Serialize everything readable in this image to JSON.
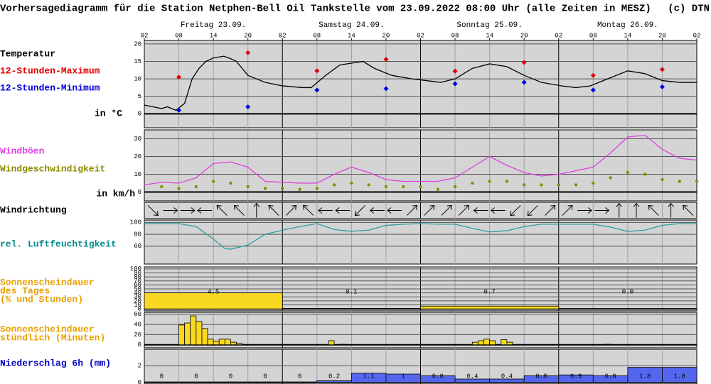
{
  "title": "Vorhersagediagramm für die Station Netphen-Bell Oil Tankstelle vom 23.09.2022 08:00 Uhr (alle Zeiten in MESZ)",
  "copyright": "(c) DTN",
  "chart_data": [
    {
      "type": "line",
      "title": "Temperatur",
      "title_color": "#000000",
      "unit_label": "in °C",
      "color": "#000000",
      "day_labels": [
        "Freitag 23.09.",
        "Samstag 24.09.",
        "Sonntag 25.09.",
        "Montag 26.09."
      ],
      "xlim": [
        0,
        96
      ],
      "xticks": [
        {
          "value": 0,
          "label": "02"
        },
        {
          "value": 6,
          "label": "08"
        },
        {
          "value": 12,
          "label": "14"
        },
        {
          "value": 18,
          "label": "20"
        },
        {
          "value": 24,
          "label": "02"
        },
        {
          "value": 30,
          "label": "08"
        },
        {
          "value": 36,
          "label": "14"
        },
        {
          "value": 42,
          "label": "20"
        },
        {
          "value": 48,
          "label": "02"
        },
        {
          "value": 54,
          "label": "08"
        },
        {
          "value": 60,
          "label": "14"
        },
        {
          "value": 66,
          "label": "20"
        },
        {
          "value": 72,
          "label": "02"
        },
        {
          "value": 78,
          "label": "08"
        },
        {
          "value": 84,
          "label": "14"
        },
        {
          "value": 90,
          "label": "20"
        },
        {
          "value": 96,
          "label": "02"
        }
      ],
      "ylim": [
        -4,
        21
      ],
      "yticks": [
        0,
        5,
        10,
        15,
        20
      ],
      "x": [
        0,
        1.5,
        3,
        4,
        5.5,
        7,
        8.3,
        9.5,
        10.7,
        12,
        13.8,
        15,
        16,
        18,
        21,
        24,
        27.5,
        29,
        31.5,
        34,
        38,
        40,
        43,
        46.5,
        49,
        51.5,
        54,
        57,
        60,
        63,
        66,
        69,
        72.5,
        75,
        77.5,
        80.5,
        84,
        87,
        90,
        93,
        96
      ],
      "values": [
        2.5,
        2,
        1.5,
        2,
        1,
        3,
        10,
        13,
        15,
        16,
        16.5,
        15.8,
        15,
        11,
        9,
        8,
        7.5,
        7.5,
        11,
        14,
        15,
        13,
        11,
        10,
        9.5,
        9,
        10,
        13,
        14.3,
        13.5,
        11,
        9,
        8,
        7.5,
        8,
        10,
        12.3,
        11.5,
        9.5,
        9,
        9
      ],
      "series": [
        {
          "name": "12-Stunden-Maximum",
          "color": "#e00000",
          "marker": "diamond",
          "x": [
            6,
            18,
            30,
            42,
            54,
            66,
            78,
            90
          ],
          "values": [
            10.5,
            17.5,
            12.3,
            15.6,
            12.2,
            14.7,
            11,
            12.7
          ]
        },
        {
          "name": "12-Stunden-Minimum",
          "color": "#0000e0",
          "marker": "diamond",
          "x": [
            6,
            18,
            30,
            42,
            54,
            66,
            78,
            90
          ],
          "values": [
            1,
            2,
            6.8,
            7.2,
            8.6,
            9,
            6.8,
            7.7
          ]
        }
      ]
    },
    {
      "type": "line",
      "unit_label": "in km/h",
      "ylim": [
        -5,
        35
      ],
      "yticks": [
        0,
        10,
        20,
        30
      ],
      "series": [
        {
          "name": "Windböen",
          "color": "#e040e0",
          "marker": "line",
          "x": [
            0,
            3,
            6,
            9,
            12,
            15,
            18,
            21,
            24,
            27,
            30,
            33,
            36,
            39,
            42,
            45,
            48,
            51,
            54,
            57,
            60,
            63,
            66,
            69,
            72,
            75,
            78,
            81,
            84,
            87,
            90,
            93,
            96
          ],
          "values": [
            4,
            5.5,
            5,
            8,
            16,
            17,
            14,
            6,
            5.5,
            5,
            5,
            10,
            14,
            11,
            7,
            6,
            6,
            6,
            8,
            14,
            20,
            15,
            11,
            9,
            10,
            12,
            14,
            22,
            31,
            32,
            24,
            19,
            18
          ]
        },
        {
          "name": "Windgeschwindigkeit",
          "color": "#8b8b00",
          "marker": "dots",
          "x": [
            3,
            6,
            9,
            12,
            15,
            18,
            21,
            24,
            27,
            30,
            33,
            36,
            39,
            42,
            45,
            48,
            51,
            54,
            57,
            60,
            63,
            66,
            69,
            72,
            75,
            78,
            81,
            84,
            87,
            90,
            93,
            96
          ],
          "values": [
            3,
            2,
            3,
            6,
            5,
            3,
            2,
            2,
            1.5,
            2,
            4,
            5,
            4,
            3,
            3,
            3,
            1.5,
            3,
            5,
            6,
            6,
            4,
            4,
            4,
            4,
            5,
            8,
            11,
            10,
            7,
            6,
            6
          ]
        }
      ]
    },
    {
      "type": "arrows",
      "title": "Windrichtung",
      "title_color": "#000000",
      "color": "#000000",
      "x": [
        1.5,
        4.5,
        7.5,
        10.5,
        13.5,
        16.5,
        19.5,
        22.5,
        25.5,
        28.5,
        31.5,
        34.5,
        37.5,
        40.5,
        43.5,
        46.5,
        49.5,
        52.5,
        55.5,
        58.5,
        61.5,
        64.5,
        67.5,
        70.5,
        73.5,
        76.5,
        79.5,
        82.5,
        85.5,
        88.5,
        91.5,
        94.5
      ],
      "values": [
        135,
        90,
        90,
        270,
        315,
        315,
        0,
        315,
        45,
        315,
        270,
        270,
        225,
        270,
        270,
        45,
        45,
        45,
        45,
        270,
        270,
        225,
        225,
        45,
        45,
        90,
        90,
        0,
        0,
        315,
        0,
        315
      ]
    },
    {
      "type": "line",
      "title": "rel. Luftfeuchtigkeit",
      "title_color": "#008b8b",
      "color": "#2f9c9c",
      "ylim": [
        30,
        104
      ],
      "yticks": [
        60,
        80,
        100
      ],
      "x": [
        0,
        3,
        6,
        9,
        12,
        14,
        15,
        18,
        21,
        24,
        27,
        30,
        33,
        36,
        39,
        42,
        45,
        48,
        51,
        54,
        57,
        60,
        63,
        66,
        69,
        72,
        75,
        78,
        81,
        84,
        87,
        90,
        93,
        96
      ],
      "values": [
        98,
        98,
        98,
        93,
        72,
        56,
        55,
        62,
        80,
        87,
        93,
        98,
        88,
        85,
        87,
        95,
        97,
        98,
        97,
        97,
        90,
        84,
        86,
        93,
        97,
        97,
        97,
        97,
        92,
        85,
        87,
        95,
        98,
        98
      ]
    },
    {
      "type": "histogram",
      "title_lines": [
        "Sonnenscheindauer",
        "des Tages",
        "(% und Stunden)"
      ],
      "title_color": "#e8a000",
      "color": "#f8d820",
      "ylim": [
        -5,
        105
      ],
      "yticks": [
        0,
        10,
        20,
        30,
        40,
        50,
        60,
        70,
        80,
        90,
        100
      ],
      "bins": [
        0,
        24,
        48,
        72,
        96
      ],
      "values": [
        40,
        1,
        7,
        0
      ],
      "hours": [
        "4.5",
        "0.1",
        "0.7",
        "0.0"
      ]
    },
    {
      "type": "histogram",
      "title_lines": [
        "Sonnenscheindauer",
        "stündlich (Minuten)"
      ],
      "title_color": "#e8a000",
      "color": "#f8d820",
      "ylim": [
        -6,
        64
      ],
      "yticks": [
        0,
        20,
        40,
        60
      ],
      "bins": [
        0,
        1,
        2,
        3,
        4,
        5,
        6,
        7,
        8,
        9,
        10,
        11,
        12,
        13,
        14,
        15,
        16,
        17,
        18,
        19,
        20,
        21,
        22,
        23,
        24,
        25,
        26,
        27,
        28,
        29,
        30,
        31,
        32,
        33,
        34,
        35,
        36,
        37,
        38,
        39,
        40,
        41,
        42,
        43,
        44,
        45,
        46,
        47,
        48,
        49,
        50,
        51,
        52,
        53,
        54,
        55,
        56,
        57,
        58,
        59,
        60,
        61,
        62,
        63,
        64,
        65,
        66,
        67,
        68,
        69,
        70,
        71,
        72,
        73,
        74,
        75,
        76,
        77,
        78,
        79,
        80,
        81,
        82,
        83,
        84,
        85,
        86,
        87,
        88,
        89,
        90,
        91,
        92,
        93,
        94,
        95,
        96
      ],
      "values": [
        0,
        0,
        0,
        0,
        0,
        0,
        39,
        43,
        57,
        46,
        32,
        11,
        7,
        11,
        11,
        5,
        3,
        0,
        0,
        0,
        0,
        0,
        0,
        0,
        0,
        0,
        0,
        0,
        0,
        0,
        0,
        0,
        8,
        0,
        1,
        0,
        0,
        0,
        0,
        0,
        0,
        0,
        0,
        0,
        0,
        0,
        0,
        0,
        0,
        0,
        0,
        0,
        0,
        0,
        0,
        0,
        0,
        5,
        8,
        11,
        8,
        0,
        10,
        5,
        0,
        0,
        0,
        0,
        0,
        0,
        0,
        0,
        0,
        0,
        0,
        0,
        0,
        0,
        0,
        0,
        1,
        0,
        0,
        0,
        0,
        0,
        0,
        0,
        0,
        0,
        0,
        0,
        0,
        0,
        0,
        0
      ]
    },
    {
      "type": "histogram",
      "title_lines": [
        "Niederschlag 6h (mm)"
      ],
      "title_color": "#0000c0",
      "color": "#5566ee",
      "show_values": true,
      "ylim": [
        -0.2,
        4
      ],
      "yticks": [
        0,
        2
      ],
      "bins": [
        0,
        6,
        12,
        18,
        24,
        30,
        36,
        42,
        48,
        54,
        60,
        66,
        72,
        78,
        84,
        90,
        96
      ],
      "values": [
        0,
        0,
        0,
        0,
        0,
        0.2,
        1.1,
        1,
        0.8,
        0.4,
        0.4,
        0.8,
        0.9,
        0.8,
        1.8,
        1.8
      ]
    }
  ]
}
